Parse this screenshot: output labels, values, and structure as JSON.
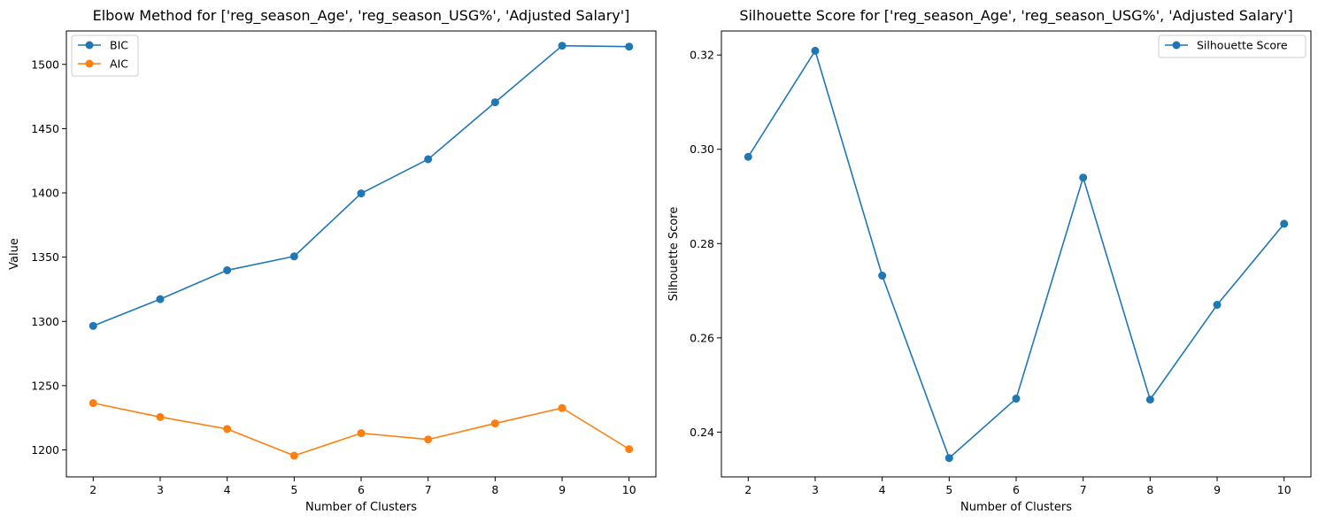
{
  "chart_data": [
    {
      "type": "line",
      "title": "Elbow Method for ['reg_season_Age', 'reg_season_USG%', 'Adjusted Salary']",
      "xlabel": "Number of Clusters",
      "ylabel": "Value",
      "x": [
        2,
        3,
        4,
        5,
        6,
        7,
        8,
        9,
        10
      ],
      "xticks": [
        "2",
        "3",
        "4",
        "5",
        "6",
        "7",
        "8",
        "9",
        "10"
      ],
      "xlim": [
        1.6,
        10.4
      ],
      "ylim": [
        1179,
        1526
      ],
      "yticks": [
        1200,
        1250,
        1300,
        1350,
        1400,
        1450,
        1500
      ],
      "grid": false,
      "legend": "upper-left",
      "series": [
        {
          "name": "BIC",
          "color": "#1f77b4",
          "values": [
            1296.5,
            1317.3,
            1339.8,
            1350.6,
            1399.6,
            1426.2,
            1470.5,
            1514.5,
            1513.8
          ]
        },
        {
          "name": "AIC",
          "color": "#ff7f0e",
          "values": [
            1236.4,
            1225.6,
            1216.3,
            1195.5,
            1213.0,
            1208.1,
            1220.6,
            1232.6,
            1200.6
          ]
        }
      ]
    },
    {
      "type": "line",
      "title": "Silhouette Score for ['reg_season_Age', 'reg_season_USG%', 'Adjusted Salary']",
      "xlabel": "Number of Clusters",
      "ylabel": "Silhouette Score",
      "x": [
        2,
        3,
        4,
        5,
        6,
        7,
        8,
        9,
        10
      ],
      "xticks": [
        "2",
        "3",
        "4",
        "5",
        "6",
        "7",
        "8",
        "9",
        "10"
      ],
      "xlim": [
        1.6,
        10.4
      ],
      "ylim": [
        0.2305,
        0.3251
      ],
      "yticks": [
        0.24,
        0.26,
        0.28,
        0.3,
        0.32
      ],
      "ytick_labels": [
        "0.24",
        "0.26",
        "0.28",
        "0.30",
        "0.32"
      ],
      "grid": false,
      "legend": "upper-right",
      "series": [
        {
          "name": "Silhouette Score",
          "color": "#1f77b4",
          "values": [
            0.2984,
            0.3209,
            0.2732,
            0.2345,
            0.2471,
            0.294,
            0.2469,
            0.267,
            0.2842
          ]
        }
      ]
    }
  ]
}
